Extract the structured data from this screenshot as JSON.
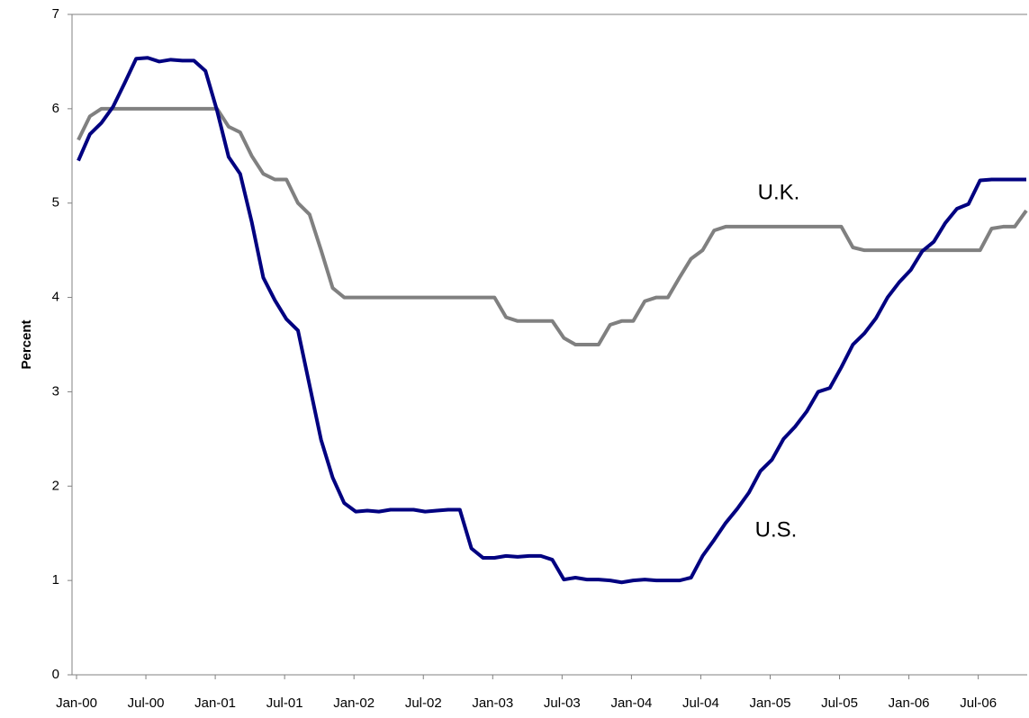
{
  "chart_data": {
    "type": "line",
    "y_label": "Percent",
    "categories": [
      "Jan-00",
      null,
      null,
      null,
      null,
      null,
      "Jul-00",
      null,
      null,
      null,
      null,
      null,
      "Jan-01",
      null,
      null,
      null,
      null,
      null,
      "Jul-01",
      null,
      null,
      null,
      null,
      null,
      "Jan-02",
      null,
      null,
      null,
      null,
      null,
      "Jul-02",
      null,
      null,
      null,
      null,
      null,
      "Jan-03",
      null,
      null,
      null,
      null,
      null,
      "Jul-03",
      null,
      null,
      null,
      null,
      null,
      "Jan-04",
      null,
      null,
      null,
      null,
      null,
      "Jul-04",
      null,
      null,
      null,
      null,
      null,
      "Jan-05",
      null,
      null,
      null,
      null,
      null,
      "Jul-05",
      null,
      null,
      null,
      null,
      null,
      "Jan-06",
      null,
      null,
      null,
      null,
      null,
      "Jul-06",
      null,
      null,
      null,
      null
    ],
    "series": [
      {
        "name": "U.S.",
        "color": "#000080",
        "values": [
          5.45,
          5.73,
          5.85,
          6.02,
          6.27,
          6.53,
          6.54,
          6.5,
          6.52,
          6.51,
          6.51,
          6.4,
          5.98,
          5.49,
          5.31,
          4.8,
          4.21,
          3.97,
          3.77,
          3.65,
          3.07,
          2.49,
          2.09,
          1.82,
          1.73,
          1.74,
          1.73,
          1.75,
          1.75,
          1.75,
          1.73,
          1.74,
          1.75,
          1.75,
          1.34,
          1.24,
          1.24,
          1.26,
          1.25,
          1.26,
          1.26,
          1.22,
          1.01,
          1.03,
          1.01,
          1.01,
          1.0,
          0.98,
          1.0,
          1.01,
          1.0,
          1.0,
          1.0,
          1.03,
          1.26,
          1.43,
          1.61,
          1.76,
          1.93,
          2.16,
          2.28,
          2.5,
          2.63,
          2.79,
          3.0,
          3.04,
          3.26,
          3.5,
          3.62,
          3.78,
          4.0,
          4.16,
          4.29,
          4.49,
          4.59,
          4.79,
          4.94,
          4.99,
          5.24,
          5.25,
          5.25,
          5.25,
          5.25
        ]
      },
      {
        "name": "U.K.",
        "color": "#808080",
        "values": [
          5.67,
          5.92,
          6.0,
          6.0,
          6.0,
          6.0,
          6.0,
          6.0,
          6.0,
          6.0,
          6.0,
          6.0,
          6.0,
          5.81,
          5.75,
          5.5,
          5.31,
          5.25,
          5.25,
          5.0,
          4.88,
          4.5,
          4.1,
          4.0,
          4.0,
          4.0,
          4.0,
          4.0,
          4.0,
          4.0,
          4.0,
          4.0,
          4.0,
          4.0,
          4.0,
          4.0,
          4.0,
          3.79,
          3.75,
          3.75,
          3.75,
          3.75,
          3.57,
          3.5,
          3.5,
          3.5,
          3.71,
          3.75,
          3.75,
          3.96,
          4.0,
          4.0,
          4.21,
          4.41,
          4.5,
          4.71,
          4.75,
          4.75,
          4.75,
          4.75,
          4.75,
          4.75,
          4.75,
          4.75,
          4.75,
          4.75,
          4.75,
          4.53,
          4.5,
          4.5,
          4.5,
          4.5,
          4.5,
          4.5,
          4.5,
          4.5,
          4.5,
          4.5,
          4.5,
          4.73,
          4.75,
          4.75,
          4.92
        ]
      }
    ],
    "ylim": [
      0,
      7
    ],
    "yticks": [
      0,
      1,
      2,
      3,
      4,
      5,
      6,
      7
    ],
    "grid": false
  }
}
